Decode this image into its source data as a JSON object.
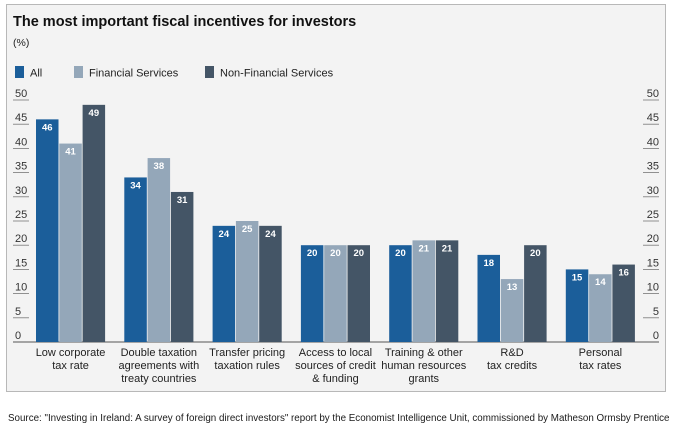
{
  "chart_data": {
    "type": "bar",
    "title": "The most important fiscal incentives for investors",
    "unit_label": "(%)",
    "categories": [
      [
        "Low corporate",
        "tax rate"
      ],
      [
        "Double taxation",
        "agreements with",
        "treaty countries"
      ],
      [
        "Transfer pricing",
        "taxation rules"
      ],
      [
        "Access to local",
        "sources of credit",
        "& funding"
      ],
      [
        "Training & other",
        "human resources",
        "grants"
      ],
      [
        "R&D",
        "tax credits"
      ],
      [
        "Personal",
        "tax rates"
      ]
    ],
    "series": [
      {
        "name": "All",
        "color": "#1b5e9a",
        "values": [
          46,
          34,
          24,
          20,
          20,
          18,
          15
        ]
      },
      {
        "name": "Financial Services",
        "color": "#94a7b9",
        "values": [
          41,
          38,
          25,
          20,
          21,
          13,
          14
        ]
      },
      {
        "name": "Non-Financial Services",
        "color": "#445566",
        "values": [
          49,
          31,
          24,
          20,
          21,
          20,
          16
        ]
      }
    ],
    "ylim": [
      0,
      50
    ],
    "yticks": [
      0,
      5,
      10,
      15,
      20,
      25,
      30,
      35,
      40,
      45,
      50
    ],
    "legend_position": "top-left",
    "grid": false
  },
  "source": "Source: \"Investing in Ireland: A survey of foreign direct investors\" report by the Economist Intelligence Unit, commissioned by Matheson Ormsby Prentice"
}
